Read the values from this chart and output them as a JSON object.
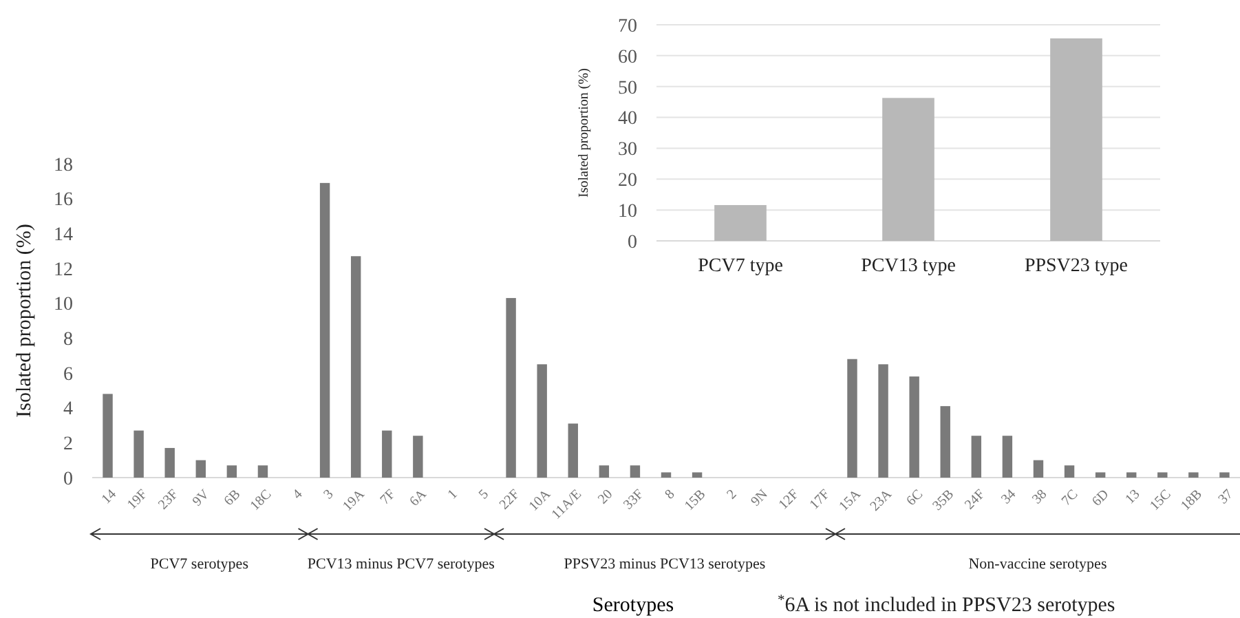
{
  "chart_data": [
    {
      "type": "bar",
      "xlabel": "Serotypes",
      "ylabel": "Isolated proportion (%)",
      "categories": [
        "14",
        "19F",
        "23F",
        "9V",
        "6B",
        "18C",
        "4",
        "3",
        "19A",
        "7F",
        "6A",
        "1",
        "5",
        "22F",
        "10A",
        "11A/E",
        "20",
        "33F",
        "8",
        "15B",
        "2",
        "9N",
        "12F",
        "17F",
        "15A",
        "23A",
        "6C",
        "35B",
        "24F",
        "34",
        "38",
        "7C",
        "6D",
        "13",
        "15C",
        "18B",
        "37"
      ],
      "values": [
        4.8,
        2.7,
        1.7,
        1.0,
        0.7,
        0.7,
        0,
        16.9,
        12.7,
        2.7,
        2.4,
        0,
        0,
        10.3,
        6.5,
        3.1,
        0.7,
        0.7,
        0.3,
        0.3,
        0,
        0,
        0,
        0,
        6.8,
        6.5,
        5.8,
        4.1,
        2.4,
        2.4,
        1.0,
        0.7,
        0.3,
        0.3,
        0.3,
        0.3,
        0.3
      ],
      "color": "#7a7a7a",
      "ylim": [
        0,
        18
      ],
      "yticks": [
        0,
        2,
        4,
        6,
        8,
        10,
        12,
        14,
        16,
        18
      ],
      "grid": false,
      "annotations": [
        "PCV7 serotypes",
        "PCV13 minus PCV7 serotypes",
        "PPSV23 minus PCV13 serotypes",
        "Non-vaccine serotypes",
        "$^{*}$6A is not included in PPSV23 serotypes"
      ]
    },
    {
      "type": "bar",
      "ylabel": "Isolated proportion (%)",
      "categories": [
        "PCV7 type",
        "PCV13 type",
        "PPSV23 type"
      ],
      "values": [
        11.6,
        46.3,
        65.6
      ],
      "color": "#b8b8b8",
      "ylim": [
        0,
        70
      ],
      "yticks": [
        0,
        10,
        20,
        30,
        40,
        50,
        60,
        70
      ],
      "grid": true
    }
  ]
}
